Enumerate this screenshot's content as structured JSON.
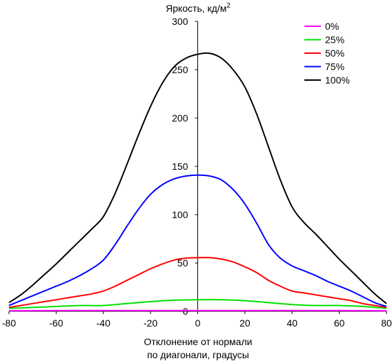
{
  "chart_data": {
    "type": "line",
    "title": "",
    "ylabel": "Яркость, кд/м",
    "ylabel_sup": "2",
    "xlabel_line1": "Отклонение от нормали",
    "xlabel_line2": "по диагонали, градусы",
    "xlim": [
      -80,
      80
    ],
    "ylim": [
      0,
      300
    ],
    "xticks": [
      -80,
      -60,
      -40,
      -20,
      0,
      20,
      40,
      60,
      80
    ],
    "yticks": [
      0,
      50,
      100,
      150,
      200,
      250,
      300
    ],
    "grid": false,
    "legend_position": "top-right",
    "series": [
      {
        "name": "0%",
        "color": "#ff00ff",
        "x": [
          -80,
          -60,
          -40,
          -20,
          0,
          20,
          40,
          60,
          80
        ],
        "y": [
          0.5,
          0.8,
          0.8,
          0.8,
          0.8,
          0.8,
          0.8,
          0.8,
          0.5
        ]
      },
      {
        "name": "25%",
        "color": "#00e000",
        "x": [
          -80,
          -70,
          -60,
          -50,
          -40,
          -30,
          -20,
          -10,
          0,
          10,
          20,
          30,
          40,
          50,
          60,
          70,
          80
        ],
        "y": [
          3,
          4,
          5,
          6,
          6,
          8,
          10,
          11.5,
          12,
          12,
          11,
          9,
          7,
          6,
          6,
          5,
          3
        ]
      },
      {
        "name": "50%",
        "color": "#ff0000",
        "x": [
          -80,
          -75,
          -70,
          -65,
          -60,
          -55,
          -50,
          -45,
          -40,
          -35,
          -30,
          -25,
          -20,
          -15,
          -10,
          -5,
          0,
          5,
          10,
          15,
          20,
          25,
          30,
          35,
          40,
          45,
          50,
          55,
          60,
          65,
          70,
          75,
          80
        ],
        "y": [
          4,
          6,
          8,
          10,
          12,
          14,
          16,
          18,
          21,
          26,
          32,
          38,
          44,
          49,
          53,
          55,
          55.5,
          55.5,
          54,
          51,
          46,
          40,
          32,
          26,
          21,
          19,
          17,
          15,
          13,
          11,
          8,
          6,
          4
        ]
      },
      {
        "name": "75%",
        "color": "#0000ff",
        "x": [
          -80,
          -75,
          -70,
          -65,
          -60,
          -55,
          -50,
          -45,
          -40,
          -35,
          -30,
          -25,
          -20,
          -15,
          -10,
          -5,
          0,
          5,
          10,
          15,
          20,
          25,
          30,
          35,
          40,
          45,
          50,
          55,
          60,
          65,
          70,
          75,
          80
        ],
        "y": [
          6,
          11,
          16,
          21,
          26,
          31,
          37,
          44,
          53,
          69,
          88,
          106,
          121,
          131,
          137,
          140,
          141,
          140,
          136,
          126,
          111,
          91,
          69,
          55,
          47,
          42,
          37,
          31,
          26,
          21,
          15,
          9,
          5
        ]
      },
      {
        "name": "100%",
        "color": "#000000",
        "x": [
          -80,
          -75,
          -70,
          -65,
          -60,
          -55,
          -50,
          -45,
          -40,
          -35,
          -30,
          -25,
          -20,
          -15,
          -10,
          -5,
          0,
          5,
          10,
          15,
          20,
          25,
          30,
          35,
          40,
          45,
          50,
          55,
          60,
          65,
          70,
          75,
          80
        ],
        "y": [
          9,
          17,
          27,
          38,
          49,
          61,
          73,
          85,
          98,
          122,
          152,
          183,
          212,
          236,
          253,
          262,
          266,
          267,
          262,
          250,
          232,
          204,
          170,
          136,
          108,
          92,
          80,
          67,
          54,
          42,
          30,
          18,
          8
        ]
      }
    ]
  }
}
